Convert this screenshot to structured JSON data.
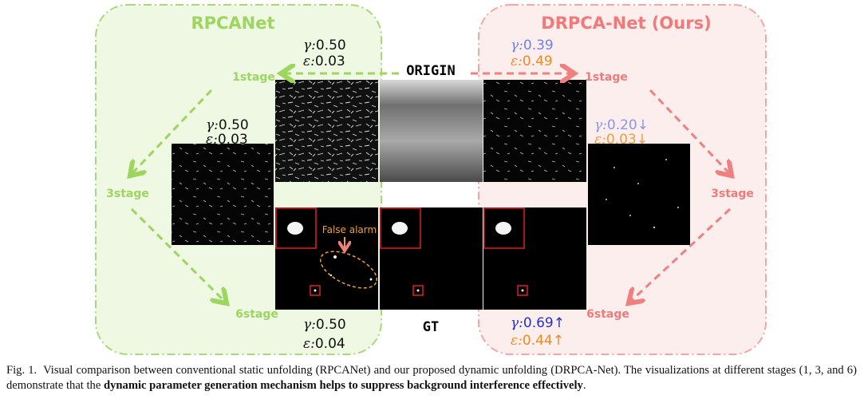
{
  "figure": {
    "left_panel": {
      "title": "RPCANet",
      "stage_labels": [
        "1stage",
        "3stage",
        "6stage"
      ],
      "params": [
        [
          {
            "label": "γ:",
            "value": "0.50"
          },
          {
            "label": "ε:",
            "value": "0.03"
          }
        ],
        [
          {
            "label": "γ:",
            "value": "0.50"
          },
          {
            "label": "ε:",
            "value": "0.03"
          }
        ],
        [
          {
            "label": "γ:",
            "value": "0.50"
          },
          {
            "label": "ε:",
            "value": "0.04"
          }
        ]
      ],
      "annotation": "False alarm"
    },
    "right_panel": {
      "title": "DRPCA-Net (Ours)",
      "stage_labels": [
        "1stage",
        "3stage",
        "6stage"
      ],
      "params": [
        [
          {
            "label": "γ:",
            "value": "0.39"
          },
          {
            "label": "ε:",
            "value": "0.49"
          }
        ],
        [
          {
            "label": "γ:",
            "value": "0.20↓"
          },
          {
            "label": "ε:",
            "value": "0.03↓"
          }
        ],
        [
          {
            "label": "γ:",
            "value": "0.69↑"
          },
          {
            "label": "ε:",
            "value": "0.44↑"
          }
        ]
      ]
    },
    "center": {
      "top_label": "ORIGIN",
      "bottom_label": "GT"
    }
  },
  "caption": {
    "prefix": "Fig. 1.",
    "text": "Visual comparison between conventional static unfolding (RPCANet) and our proposed dynamic unfolding (DRPCA-Net). The visualizations at different stages (1, 3, and 6) demonstrate that the",
    "bold": "dynamic parameter generation mechanism helps to suppress background interference effectively",
    "end": "."
  }
}
